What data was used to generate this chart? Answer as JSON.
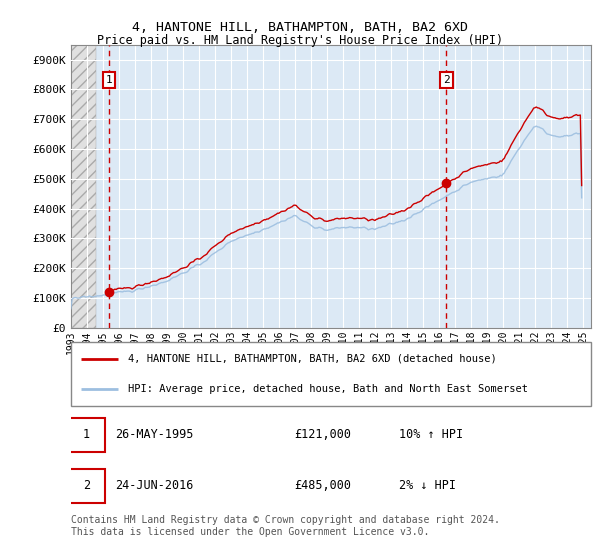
{
  "title": "4, HANTONE HILL, BATHAMPTON, BATH, BA2 6XD",
  "subtitle": "Price paid vs. HM Land Registry's House Price Index (HPI)",
  "ylim": [
    0,
    950000
  ],
  "yticks": [
    0,
    100000,
    200000,
    300000,
    400000,
    500000,
    600000,
    700000,
    800000,
    900000
  ],
  "ytick_labels": [
    "£0",
    "£100K",
    "£200K",
    "£300K",
    "£400K",
    "£500K",
    "£600K",
    "£700K",
    "£800K",
    "£900K"
  ],
  "hpi_color": "#9dbfe0",
  "price_color": "#cc0000",
  "sale1_x": 1995.38,
  "sale1_y": 121000,
  "sale2_x": 2016.47,
  "sale2_y": 485000,
  "legend_label1": "4, HANTONE HILL, BATHAMPTON, BATH, BA2 6XD (detached house)",
  "legend_label2": "HPI: Average price, detached house, Bath and North East Somerset",
  "table_row1": [
    "1",
    "26-MAY-1995",
    "£121,000",
    "10% ↑ HPI"
  ],
  "table_row2": [
    "2",
    "24-JUN-2016",
    "£485,000",
    "2% ↓ HPI"
  ],
  "footer": "Contains HM Land Registry data © Crown copyright and database right 2024.\nThis data is licensed under the Open Government Licence v3.0.",
  "background_color": "#ffffff",
  "plot_bg_color": "#dce9f5",
  "grid_color": "#ffffff",
  "xmin": 1993.0,
  "xmax": 2025.5
}
